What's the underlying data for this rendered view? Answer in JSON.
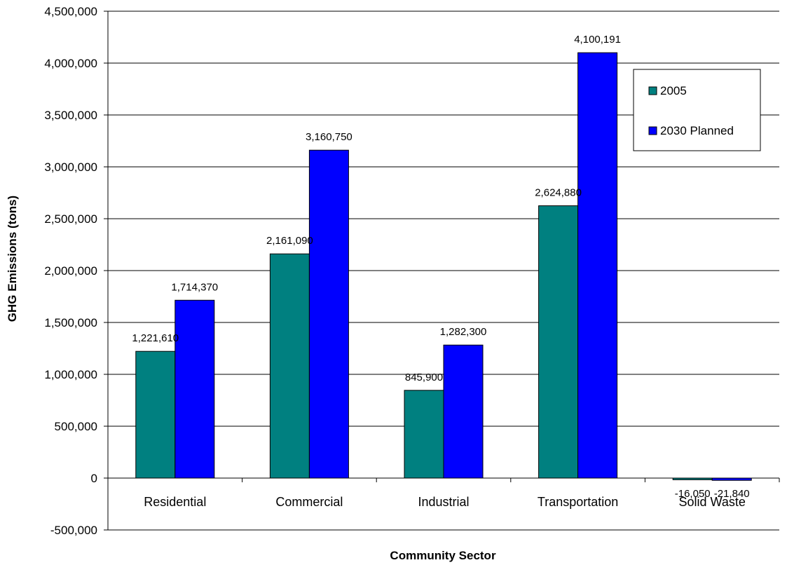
{
  "chart_data": {
    "type": "bar",
    "title": "",
    "xlabel": "Community Sector",
    "ylabel": "GHG Emissions (tons)",
    "ylim": [
      -500000,
      4500000
    ],
    "ytick_step": 500000,
    "ytick_labels": [
      "-500,000",
      "0",
      "500,000",
      "1,000,000",
      "1,500,000",
      "2,000,000",
      "2,500,000",
      "3,000,000",
      "3,500,000",
      "4,000,000",
      "4,500,000"
    ],
    "grid": true,
    "legend_position": "top-right",
    "categories": [
      "Residential",
      "Commercial",
      "Industrial",
      "Transportation",
      "Solid Waste"
    ],
    "series": [
      {
        "name": "2005",
        "color": "#008080",
        "values": [
          1221610,
          2161090,
          845900,
          2624880,
          -16050
        ],
        "labels": [
          "1,221,610",
          "2,161,090",
          "845,900",
          "2,624,880",
          "-16,050"
        ]
      },
      {
        "name": "2030 Planned",
        "color": "#0000FF",
        "values": [
          1714370,
          3160750,
          1282300,
          4100191,
          -21840
        ],
        "labels": [
          "1,714,370",
          "3,160,750",
          "1,282,300",
          "4,100,191",
          "-21,840"
        ]
      }
    ]
  }
}
